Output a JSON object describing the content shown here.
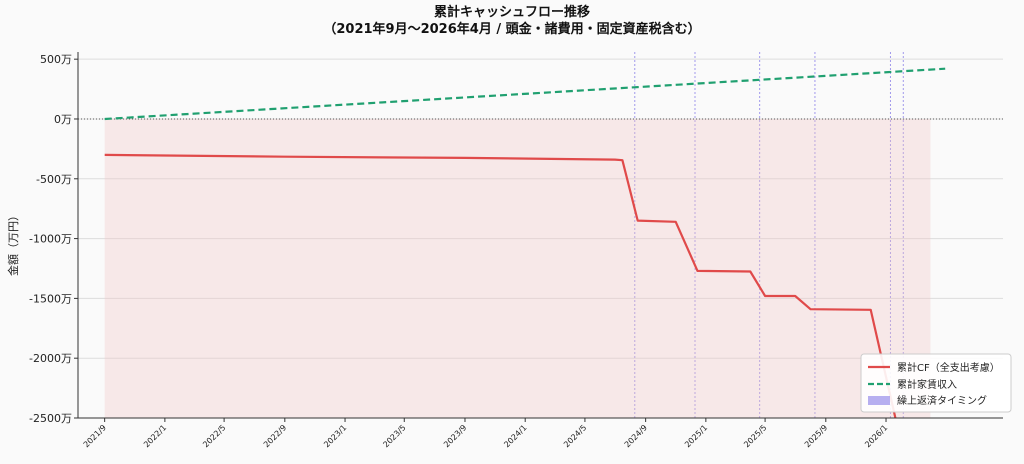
{
  "chart_data": {
    "type": "line",
    "title_line1": "累計キャッシュフロー推移",
    "title_line2": "（2021年9月〜2026年4月 / 頭金・諸費用・固定資産税含む）",
    "ylabel": "金額（万円）",
    "xlabel": "",
    "ylim": [
      -2500,
      560
    ],
    "y_ticks": [
      {
        "value": 500,
        "label": "500万"
      },
      {
        "value": 0,
        "label": "0万"
      },
      {
        "value": -500,
        "label": "-500万"
      },
      {
        "value": -1000,
        "label": "-1000万"
      },
      {
        "value": -1500,
        "label": "-1500万"
      },
      {
        "value": -2000,
        "label": "-2000万"
      },
      {
        "value": -2500,
        "label": "-2500万"
      }
    ],
    "x_range": [
      "2021-07-09",
      "2026-08-26"
    ],
    "x_ticks": [
      {
        "date": "2021-09-01",
        "label": "2021/9"
      },
      {
        "date": "2022-01-01",
        "label": "2022/1"
      },
      {
        "date": "2022-05-01",
        "label": "2022/5"
      },
      {
        "date": "2022-09-01",
        "label": "2022/9"
      },
      {
        "date": "2023-01-01",
        "label": "2023/1"
      },
      {
        "date": "2023-05-01",
        "label": "2023/5"
      },
      {
        "date": "2023-09-01",
        "label": "2023/9"
      },
      {
        "date": "2024-01-01",
        "label": "2024/1"
      },
      {
        "date": "2024-05-01",
        "label": "2024/5"
      },
      {
        "date": "2024-09-01",
        "label": "2024/9"
      },
      {
        "date": "2025-01-01",
        "label": "2025/1"
      },
      {
        "date": "2025-05-01",
        "label": "2025/5"
      },
      {
        "date": "2025-09-01",
        "label": "2025/9"
      },
      {
        "date": "2026-01-01",
        "label": "2026/1"
      }
    ],
    "series": [
      {
        "name": "累計CF（全支出考慮）",
        "color": "#e04a4a",
        "style": "solid",
        "fill_to_zero": true,
        "fill_color": "#f2c6c6",
        "points": [
          [
            "2021-09-01",
            -300
          ],
          [
            "2022-01-01",
            -305
          ],
          [
            "2022-09-01",
            -315
          ],
          [
            "2023-09-01",
            -325
          ],
          [
            "2024-07-01",
            -340
          ],
          [
            "2024-07-16",
            -345
          ],
          [
            "2024-08-16",
            -850
          ],
          [
            "2024-11-01",
            -860
          ],
          [
            "2024-12-15",
            -1270
          ],
          [
            "2025-04-01",
            -1275
          ],
          [
            "2025-05-01",
            -1480
          ],
          [
            "2025-07-01",
            -1480
          ],
          [
            "2025-08-01",
            -1590
          ],
          [
            "2025-12-01",
            -1595
          ],
          [
            "2026-01-20",
            -2500
          ]
        ],
        "fill_extent": [
          "2021-09-01",
          "2026-04-01"
        ]
      },
      {
        "name": "累計家賃収入",
        "color": "#20a070",
        "style": "dashed",
        "points": [
          [
            "2021-09-01",
            0
          ],
          [
            "2026-05-01",
            420
          ]
        ]
      }
    ],
    "prepayment_timing": {
      "name": "繰上返済タイミング",
      "color": "#7b6fe6",
      "dates": [
        "2024-08-10",
        "2024-12-10",
        "2025-04-20",
        "2025-08-10",
        "2026-01-10",
        "2026-02-05"
      ]
    },
    "zero_line": true,
    "grid": "horizontal",
    "legend_position": "bottom-right"
  }
}
